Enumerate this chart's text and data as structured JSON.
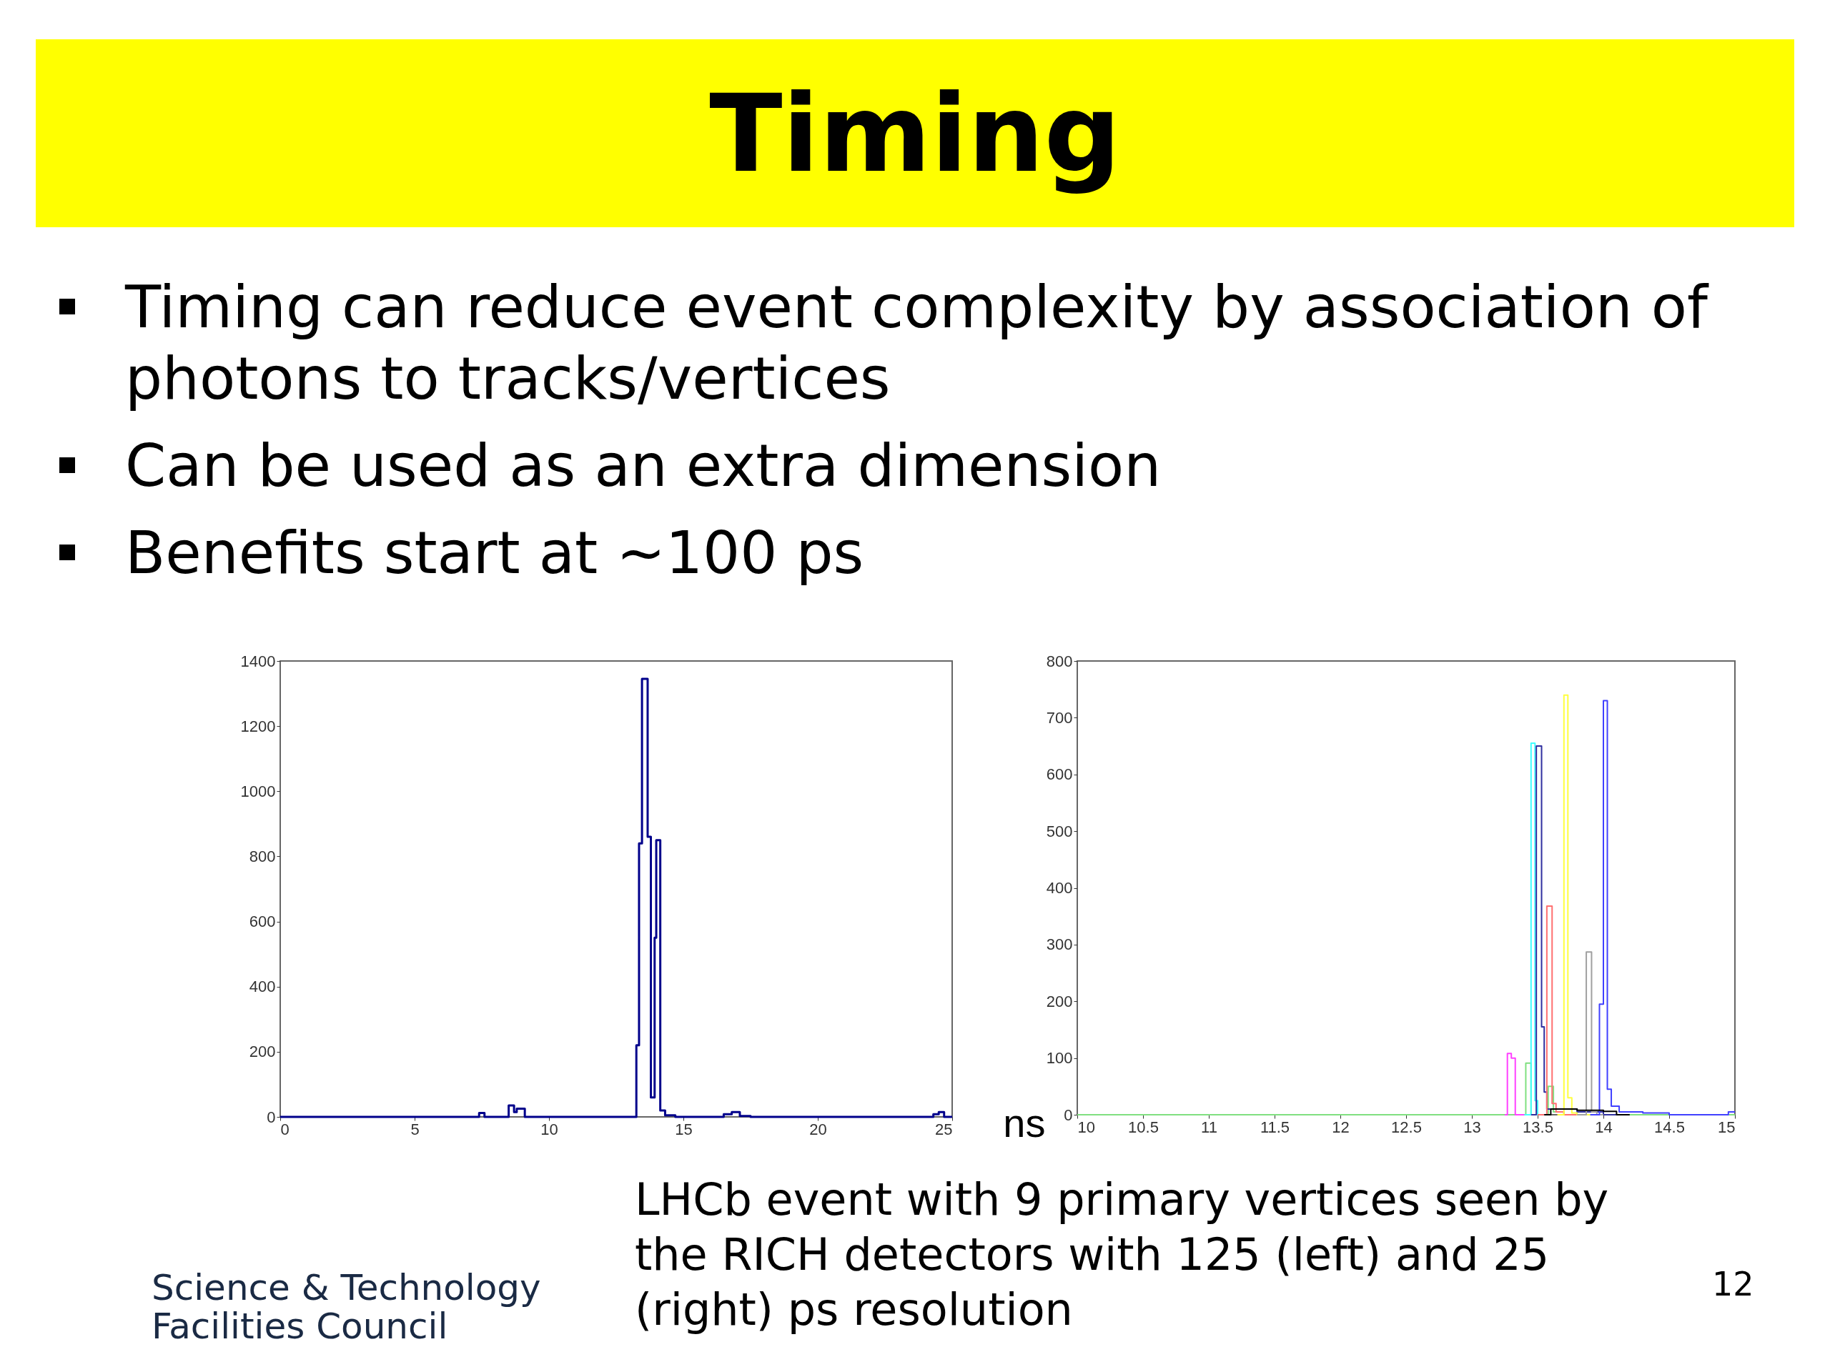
{
  "chart_data": [
    {
      "type": "step",
      "title": "Timing",
      "xlabel": "ns",
      "annotations": [
        "Timing can reduce event complexity by association of photons to tracks/vertices",
        "Can be used as an extra dimension",
        "Benefits start at ~100 ps"
      ],
      "xlim": [
        0,
        25
      ],
      "xticks": [
        0,
        5,
        10,
        15,
        20,
        25
      ],
      "ylim": [
        0,
        1400
      ],
      "yticks": [
        0,
        200,
        400,
        600,
        800,
        1000,
        1200,
        1400
      ],
      "marker": "none",
      "series": [
        {
          "color": "#00008b",
          "x": [
            0,
            7.4,
            7.6,
            8.5,
            8.7,
            8.8,
            9.1,
            13.25,
            13.35,
            13.46,
            13.67,
            13.79,
            13.93,
            13.99,
            14.14,
            14.32,
            14.7,
            16.5,
            16.8,
            17.1,
            17.5,
            24.3,
            24.5,
            24.7,
            25
          ],
          "values": [
            0,
            12,
            0,
            35,
            15,
            25,
            0,
            220,
            840,
            1345,
            860,
            60,
            550,
            850,
            20,
            5,
            0,
            8,
            15,
            3,
            0,
            8,
            15,
            0,
            0
          ]
        }
      ]
    },
    {
      "type": "step",
      "annotations": [
        "LHCb event with 9 primary vertices seen by the RICH detectors with 125 (left) and 25 (right) ps resolution",
        "12",
        "Science & Technology Facilities Council"
      ],
      "xlim": [
        10,
        15
      ],
      "xticks": [
        10,
        10.5,
        11,
        11.5,
        12,
        12.5,
        13,
        13.5,
        14,
        14.5,
        15
      ],
      "ylim": [
        0,
        800
      ],
      "yticks": [
        0,
        100,
        200,
        300,
        400,
        500,
        600,
        700,
        800
      ],
      "marker": "none",
      "series": [
        {
          "color": "#80e080",
          "x": [
            10,
            13.41,
            13.45,
            13.58,
            13.62,
            13.7,
            15
          ],
          "values": [
            0,
            91,
            0,
            50,
            5,
            0,
            0
          ]
        },
        {
          "color": "#ff40ff",
          "x": [
            13.25,
            13.27,
            13.3,
            13.33,
            13.4
          ],
          "values": [
            0,
            108,
            100,
            0,
            0
          ]
        },
        {
          "color": "#40ffff",
          "x": [
            13.4,
            13.45,
            13.48,
            13.5,
            13.6
          ],
          "values": [
            0,
            655,
            25,
            0,
            0
          ]
        },
        {
          "color": "#3030a0",
          "x": [
            13.45,
            13.49,
            13.53,
            13.55,
            13.57,
            13.8,
            14.0,
            14.1
          ],
          "values": [
            0,
            650,
            155,
            40,
            10,
            5,
            0,
            0
          ]
        },
        {
          "color": "#ff7070",
          "x": [
            13.5,
            13.57,
            13.61,
            13.64,
            13.7,
            13.8
          ],
          "values": [
            0,
            368,
            20,
            5,
            0,
            0
          ]
        },
        {
          "color": "#ffff40",
          "x": [
            13.65,
            13.7,
            13.73,
            13.76,
            13.8,
            13.9
          ],
          "values": [
            0,
            740,
            30,
            3,
            0,
            0
          ]
        },
        {
          "color": "#a0a0a0",
          "x": [
            13.8,
            13.87,
            13.91,
            13.95,
            14.0
          ],
          "values": [
            0,
            287,
            5,
            0,
            0
          ]
        },
        {
          "color": "#4040ff",
          "x": [
            13.9,
            13.97,
            14.0,
            14.03,
            14.06,
            14.12,
            14.3,
            14.5,
            14.95,
            15
          ],
          "values": [
            0,
            195,
            730,
            45,
            15,
            5,
            3,
            0,
            5,
            5
          ]
        },
        {
          "color": "#000000",
          "x": [
            13.55,
            13.6,
            13.8,
            14.0,
            14.1,
            14.2
          ],
          "values": [
            0,
            10,
            8,
            6,
            0,
            0
          ]
        }
      ]
    }
  ]
}
